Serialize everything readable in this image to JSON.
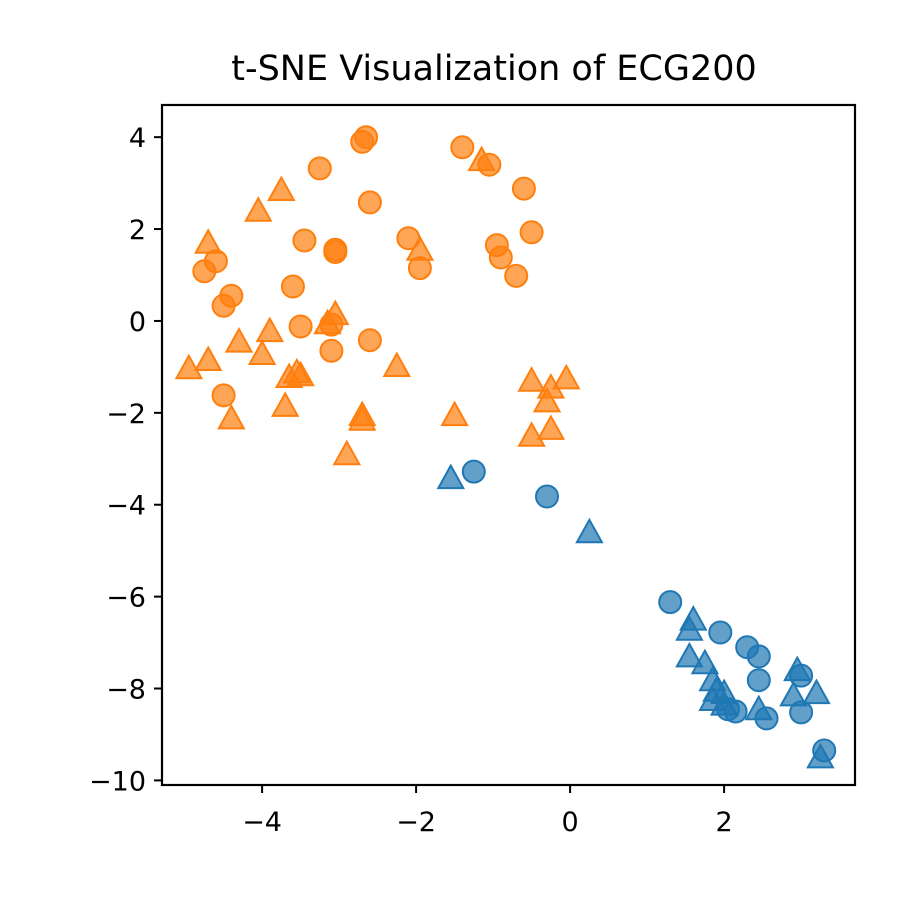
{
  "chart_data": {
    "type": "scatter",
    "title": "t-SNE Visualization of ECG200",
    "xlabel": "",
    "ylabel": "",
    "xlim": [
      -5.3,
      3.7
    ],
    "ylim": [
      -10.1,
      4.7
    ],
    "x_ticks": [
      -4,
      -2,
      0,
      2
    ],
    "x_tick_labels": [
      "−4",
      "−2",
      "0",
      "2"
    ],
    "y_ticks": [
      4,
      2,
      0,
      -2,
      -4,
      -6,
      -8,
      -10
    ],
    "y_tick_labels": [
      "4",
      "2",
      "0",
      "−2",
      "−4",
      "−6",
      "−8",
      "−10"
    ],
    "grid": false,
    "legend": "none",
    "colors": {
      "orange": "#ff7f0e",
      "blue": "#1f77b4"
    },
    "series": [
      {
        "color": "orange",
        "marker": "circle",
        "points": [
          [
            -2.7,
            3.9
          ],
          [
            -2.65,
            4.0
          ],
          [
            -1.4,
            3.78
          ],
          [
            -1.05,
            3.4
          ],
          [
            -3.25,
            3.32
          ],
          [
            -0.6,
            2.88
          ],
          [
            -2.6,
            2.58
          ],
          [
            -0.5,
            1.93
          ],
          [
            -3.45,
            1.75
          ],
          [
            -3.05,
            1.55
          ],
          [
            -3.05,
            1.5
          ],
          [
            -2.1,
            1.8
          ],
          [
            -0.95,
            1.65
          ],
          [
            -0.9,
            1.38
          ],
          [
            -0.7,
            0.98
          ],
          [
            -1.95,
            1.15
          ],
          [
            -4.6,
            1.3
          ],
          [
            -4.75,
            1.08
          ],
          [
            -3.6,
            0.75
          ],
          [
            -4.4,
            0.55
          ],
          [
            -4.5,
            0.33
          ],
          [
            -3.5,
            -0.12
          ],
          [
            -3.1,
            -0.08
          ],
          [
            -3.1,
            -0.65
          ],
          [
            -2.6,
            -0.42
          ],
          [
            -4.5,
            -1.62
          ]
        ]
      },
      {
        "color": "orange",
        "marker": "triangle",
        "points": [
          [
            -1.15,
            3.5
          ],
          [
            -3.75,
            2.85
          ],
          [
            -4.05,
            2.4
          ],
          [
            -4.7,
            1.7
          ],
          [
            -1.95,
            1.55
          ],
          [
            -3.05,
            0.15
          ],
          [
            -3.15,
            -0.05
          ],
          [
            -3.9,
            -0.22
          ],
          [
            -4.3,
            -0.45
          ],
          [
            -4.0,
            -0.72
          ],
          [
            -4.7,
            -0.85
          ],
          [
            -4.95,
            -1.03
          ],
          [
            -2.25,
            -0.98
          ],
          [
            -3.55,
            -1.12
          ],
          [
            -3.5,
            -1.18
          ],
          [
            -3.65,
            -1.22
          ],
          [
            -0.5,
            -1.3
          ],
          [
            -0.05,
            -1.25
          ],
          [
            -0.25,
            -1.45
          ],
          [
            -0.3,
            -1.75
          ],
          [
            -3.7,
            -1.85
          ],
          [
            -4.4,
            -2.12
          ],
          [
            -2.7,
            -2.05
          ],
          [
            -2.7,
            -2.15
          ],
          [
            -1.5,
            -2.05
          ],
          [
            -0.5,
            -2.5
          ],
          [
            -0.25,
            -2.35
          ],
          [
            -2.9,
            -2.9
          ]
        ]
      },
      {
        "color": "blue",
        "marker": "circle",
        "points": [
          [
            -1.25,
            -3.28
          ],
          [
            -0.3,
            -3.82
          ],
          [
            1.3,
            -6.12
          ],
          [
            1.95,
            -6.78
          ],
          [
            2.3,
            -7.1
          ],
          [
            2.45,
            -7.3
          ],
          [
            3.0,
            -7.72
          ],
          [
            2.45,
            -7.82
          ],
          [
            2.05,
            -8.45
          ],
          [
            2.15,
            -8.5
          ],
          [
            3.0,
            -8.52
          ],
          [
            2.55,
            -8.65
          ],
          [
            3.3,
            -9.35
          ]
        ]
      },
      {
        "color": "blue",
        "marker": "triangle",
        "points": [
          [
            -1.55,
            -3.42
          ],
          [
            0.25,
            -4.6
          ],
          [
            1.6,
            -6.5
          ],
          [
            1.55,
            -6.72
          ],
          [
            1.55,
            -7.3
          ],
          [
            1.75,
            -7.45
          ],
          [
            2.95,
            -7.6
          ],
          [
            1.85,
            -7.82
          ],
          [
            1.9,
            -8.05
          ],
          [
            2.0,
            -8.1
          ],
          [
            1.85,
            -8.25
          ],
          [
            2.0,
            -8.35
          ],
          [
            2.9,
            -8.15
          ],
          [
            3.2,
            -8.1
          ],
          [
            2.45,
            -8.45
          ],
          [
            3.25,
            -9.5
          ]
        ]
      }
    ]
  }
}
